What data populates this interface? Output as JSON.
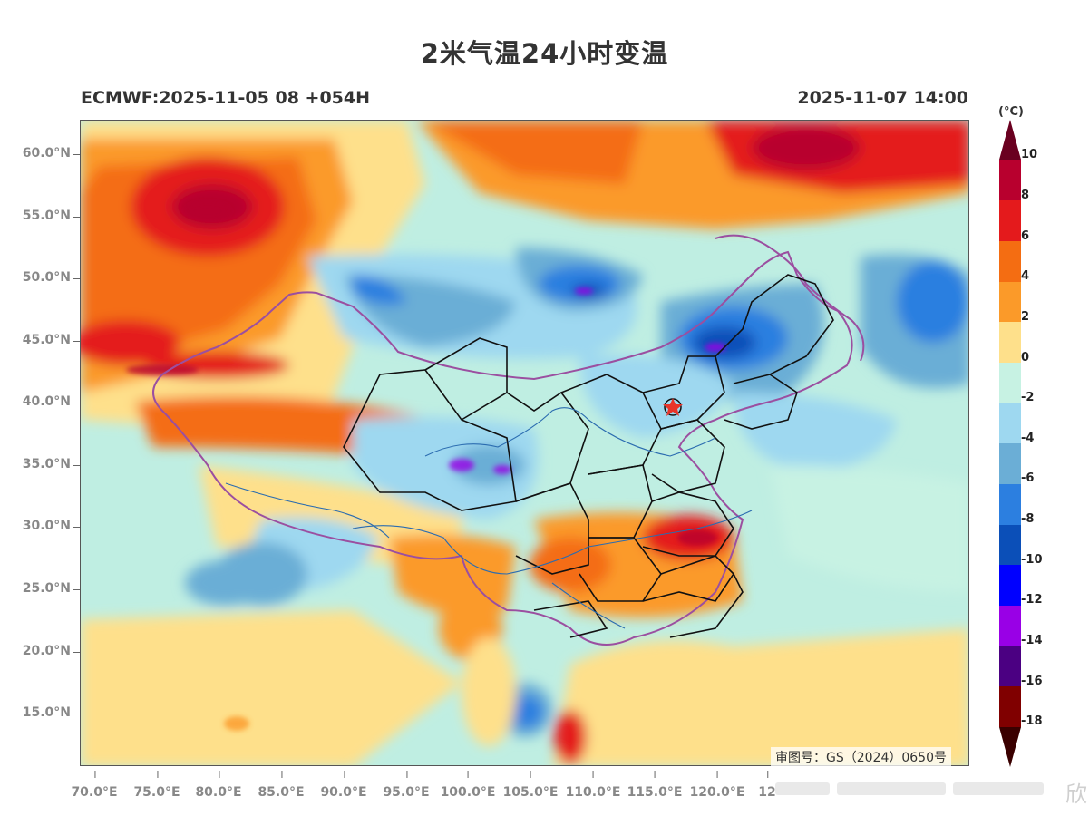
{
  "title": "2米气温24小时变温",
  "model_run": "ECMWF:2025-11-05 08 +054H",
  "valid_time": "2025-11-07 14:00",
  "review_number": "审图号：GS（2024）0650号",
  "watermark_text": "欣",
  "latitude_labels": [
    "60.0°N",
    "55.0°N",
    "50.0°N",
    "45.0°N",
    "40.0°N",
    "35.0°N",
    "30.0°N",
    "25.0°N",
    "20.0°N",
    "15.0°N"
  ],
  "longitude_labels": [
    "70.0°E",
    "75.0°E",
    "80.0°E",
    "85.0°E",
    "90.0°E",
    "95.0°E",
    "100.0°E",
    "105.0°E",
    "110.0°E",
    "115.0°E",
    "120.0°E",
    "12"
  ],
  "colorbar": {
    "unit": "(°C)",
    "labels": [
      "10",
      "8",
      "6",
      "4",
      "2",
      "0",
      "-2",
      "-4",
      "-6",
      "-8",
      "-10",
      "-12",
      "-14",
      "-16",
      "-18"
    ],
    "colors": {
      "gt10": "#6a0020",
      "8_10": "#b8002e",
      "6_8": "#e41a1c",
      "4_6": "#f46d12",
      "2_4": "#fb9a29",
      "0_2": "#fee08b",
      "m2_0": "#c7f2e3",
      "m4_m2": "#9ed8f0",
      "m6_m4": "#6baed6",
      "m8_m6": "#2c7fe0",
      "m10_m8": "#0b4fb8",
      "m12_m10": "#0000ff",
      "m14_m12": "#9900e6",
      "m16_m14": "#4b0082",
      "m18_m16": "#800000",
      "lt_m18": "#3a0000"
    }
  },
  "map_colors": {
    "country_border": "#9b4fa0",
    "province_border": "#111111",
    "river": "#2b6cb0",
    "marker": "#e8342a"
  }
}
